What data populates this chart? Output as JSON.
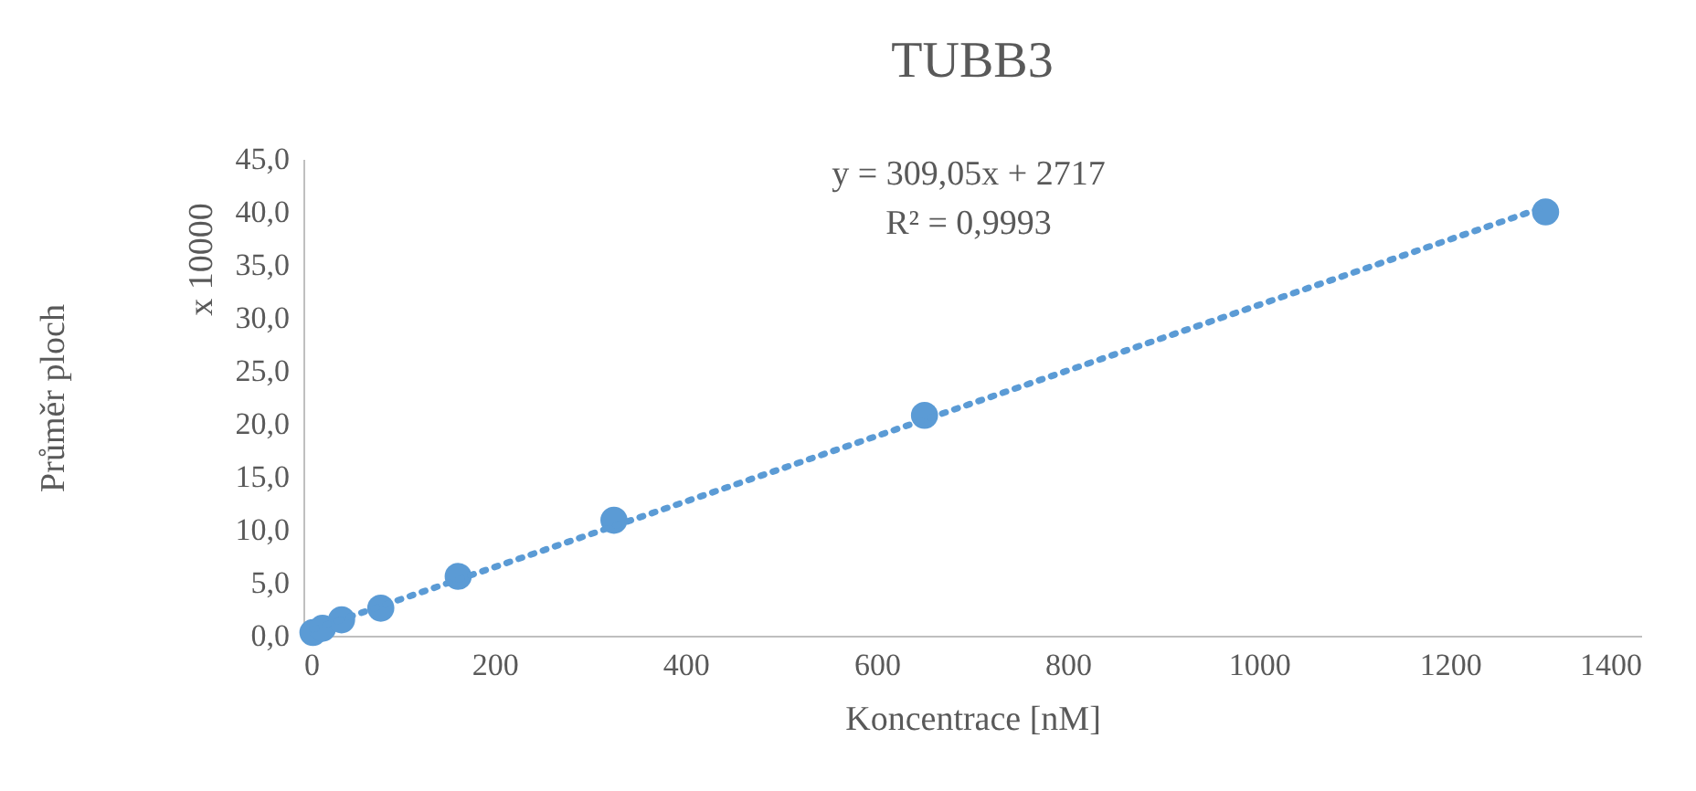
{
  "chart_data": {
    "type": "scatter",
    "title": "TUBB3",
    "xlabel": "Koncentrace  [nM]",
    "ylabel": "Průměr ploch",
    "annotations": [
      "y = 309,05x + 2717",
      "R² = 0,9993",
      "x 10000"
    ],
    "xlim": [
      0,
      1400
    ],
    "xticks": [
      0,
      200,
      400,
      600,
      800,
      1000,
      1200,
      1400
    ],
    "ylim": [
      0,
      45
    ],
    "yticks": [
      {
        "value": 0,
        "label": "0,0"
      },
      {
        "value": 5,
        "label": "5,0"
      },
      {
        "value": 10,
        "label": "10,0"
      },
      {
        "value": 15,
        "label": "15,0"
      },
      {
        "value": 20,
        "label": "20,0"
      },
      {
        "value": 25,
        "label": "25,0"
      },
      {
        "value": 30,
        "label": "30,0"
      },
      {
        "value": 35,
        "label": "35,0"
      },
      {
        "value": 40,
        "label": "40,0"
      },
      {
        "value": 45,
        "label": "45,0"
      }
    ],
    "grid": false,
    "series": [
      {
        "marker": "circle",
        "color": "#5b9bd5",
        "x": [
          10,
          20,
          40,
          81,
          162,
          325,
          650,
          1300
        ],
        "values": [
          0.3,
          0.7,
          1.5,
          2.6,
          5.6,
          10.9,
          20.8,
          40.0
        ]
      },
      {
        "type": "line",
        "color": "#5b9bd5",
        "line_style": "dotted",
        "x": [
          10,
          1300
        ],
        "values": [
          0.6,
          40.5
        ]
      }
    ]
  }
}
